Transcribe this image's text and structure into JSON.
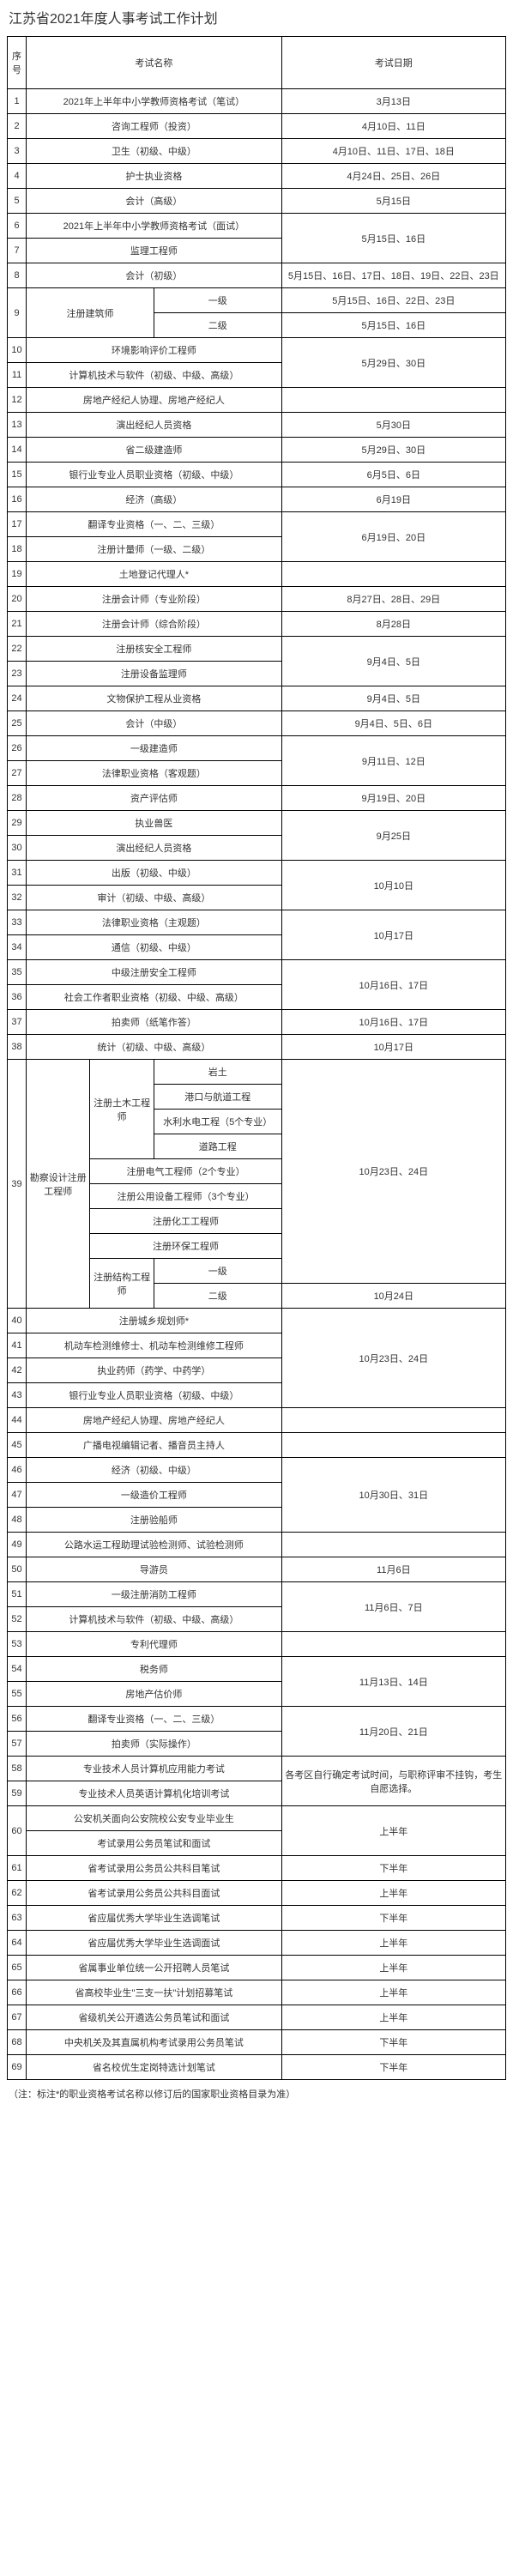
{
  "title": "江苏省2021年度人事考试工作计划",
  "h": {
    "seq": "序号",
    "name": "考试名称",
    "date": "考试日期"
  },
  "r": {
    "1": {
      "name": "2021年上半年中小学教师资格考试（笔试）",
      "date": "3月13日"
    },
    "2": {
      "name": "咨询工程师（投资）",
      "date": "4月10日、11日"
    },
    "3": {
      "name": "卫生（初级、中级）",
      "date": "4月10日、11日、17日、18日"
    },
    "4": {
      "name": "护士执业资格",
      "date": "4月24日、25日、26日"
    },
    "5": {
      "name": "会计（高级）",
      "date": "5月15日"
    },
    "6": {
      "name": "2021年上半年中小学教师资格考试（面试）",
      "date": "5月15日、16日"
    },
    "7": {
      "name": "监理工程师"
    },
    "8": {
      "name": "会计（初级）",
      "date": "5月15日、16日、17日、18日、19日、22日、23日"
    },
    "9": {
      "name": "注册建筑师",
      "l1": "一级",
      "d1": "5月15日、16日、22日、23日",
      "l2": "二级",
      "d2": "5月15日、16日"
    },
    "10": {
      "name": "环境影响评价工程师",
      "date": "5月29日、30日"
    },
    "11": {
      "name": "计算机技术与软件（初级、中级、高级）"
    },
    "12": {
      "name": "房地产经纪人协理、房地产经纪人",
      "date": ""
    },
    "13": {
      "name": "演出经纪人员资格",
      "date": "5月30日"
    },
    "14": {
      "name": "省二级建造师",
      "date": "5月29日、30日"
    },
    "15": {
      "name": "银行业专业人员职业资格（初级、中级）",
      "date": "6月5日、6日"
    },
    "16": {
      "name": "经济（高级）",
      "date": "6月19日"
    },
    "17": {
      "name": "翻译专业资格（一、二、三级）",
      "date": "6月19日、20日"
    },
    "18": {
      "name": "注册计量师（一级、二级）"
    },
    "19": {
      "name": "土地登记代理人*",
      "date": ""
    },
    "20": {
      "name": "注册会计师（专业阶段）",
      "date": "8月27日、28日、29日"
    },
    "21": {
      "name": "注册会计师（综合阶段）",
      "date": "8月28日"
    },
    "22": {
      "name": "注册核安全工程师",
      "date": "9月4日、5日"
    },
    "23": {
      "name": "注册设备监理师"
    },
    "24": {
      "name": "文物保护工程从业资格",
      "date": "9月4日、5日"
    },
    "25": {
      "name": "会计（中级）",
      "date": "9月4日、5日、6日"
    },
    "26": {
      "name": "一级建造师",
      "date": "9月11日、12日"
    },
    "27": {
      "name": "法律职业资格（客观题）"
    },
    "28": {
      "name": "资产评估师",
      "date": "9月19日、20日"
    },
    "29": {
      "name": "执业兽医",
      "date": "9月25日"
    },
    "30": {
      "name": "演出经纪人员资格"
    },
    "31": {
      "name": "出版（初级、中级）",
      "date": "10月10日"
    },
    "32": {
      "name": "审计（初级、中级、高级）"
    },
    "33": {
      "name": "法律职业资格（主观题）",
      "date": "10月17日"
    },
    "34": {
      "name": "通信（初级、中级）"
    },
    "35": {
      "name": "中级注册安全工程师",
      "date": "10月16日、17日"
    },
    "36": {
      "name": "社会工作者职业资格（初级、中级、高级）"
    },
    "37": {
      "name": "拍卖师（纸笔作答）",
      "date": "10月16日、17日"
    },
    "38": {
      "name": "统计（初级、中级、高级）",
      "date": "10月17日"
    },
    "39": {
      "g1": "勘察设计注册工程师",
      "g2a": "注册土木工程师",
      "a": "岩土",
      "b": "港口与航道工程",
      "c": "水利水电工程（5个专业）",
      "d": "道路工程",
      "e": "注册电气工程师（2个专业）",
      "f": "注册公用设备工程师（3个专业）",
      "g": "注册化工工程师",
      "h": "注册环保工程师",
      "g2b": "注册结构工程师",
      "i": "一级",
      "j": "二级",
      "date": "10月23日、24日",
      "d2": "10月24日"
    },
    "40": {
      "name": "注册城乡规划师*",
      "date": "10月23日、24日"
    },
    "41": {
      "name": "机动车检测维修士、机动车检测维修工程师"
    },
    "42": {
      "name": "执业药师（药学、中药学）"
    },
    "43": {
      "name": "银行业专业人员职业资格（初级、中级）"
    },
    "44": {
      "name": "房地产经纪人协理、房地产经纪人",
      "date": ""
    },
    "45": {
      "name": "广播电视编辑记者、播音员主持人",
      "date": ""
    },
    "46": {
      "name": "经济（初级、中级）",
      "date": "10月30日、31日"
    },
    "47": {
      "name": "一级造价工程师"
    },
    "48": {
      "name": "注册验船师"
    },
    "49": {
      "name": "公路水运工程助理试验检测师、试验检测师",
      "date": ""
    },
    "50": {
      "name": "导游员",
      "date": "11月6日"
    },
    "51": {
      "name": "一级注册消防工程师",
      "date": "11月6日、7日"
    },
    "52": {
      "name": "计算机技术与软件（初级、中级、高级）"
    },
    "53": {
      "name": "专利代理师",
      "date": ""
    },
    "54": {
      "name": "税务师",
      "date": "11月13日、14日"
    },
    "55": {
      "name": "房地产估价师"
    },
    "56": {
      "name": "翻译专业资格（一、二、三级）",
      "date": "11月20日、21日"
    },
    "57": {
      "name": "拍卖师（实际操作）"
    },
    "58": {
      "name": "专业技术人员计算机应用能力考试",
      "date": "各考区自行确定考试时间，与职称评审不挂钩，考生自愿选择。"
    },
    "59": {
      "name": "专业技术人员英语计算机化培训考试"
    },
    "60": {
      "l1": "公安机关面向公安院校公安专业毕业生",
      "l2": "考试录用公务员笔试和面试",
      "date": "上半年"
    },
    "61": {
      "name": "省考试录用公务员公共科目笔试",
      "date": "下半年"
    },
    "62": {
      "name": "省考试录用公务员公共科目面试",
      "date": "上半年"
    },
    "63": {
      "name": "省应届优秀大学毕业生选调笔试",
      "date": "下半年"
    },
    "64": {
      "name": "省应届优秀大学毕业生选调面试",
      "date": "上半年"
    },
    "65": {
      "name": "省属事业单位统一公开招聘人员笔试",
      "date": "上半年"
    },
    "66": {
      "name": "省高校毕业生\"三支一扶\"计划招募笔试",
      "date": "上半年"
    },
    "67": {
      "name": "省级机关公开遴选公务员笔试和面试",
      "date": "上半年"
    },
    "68": {
      "name": "中央机关及其直属机构考试录用公务员笔试",
      "date": "下半年"
    },
    "69": {
      "name": "省名校优生定岗特选计划笔试",
      "date": "下半年"
    }
  },
  "note": "（注：标注*的职业资格考试名称以修订后的国家职业资格目录为准）"
}
